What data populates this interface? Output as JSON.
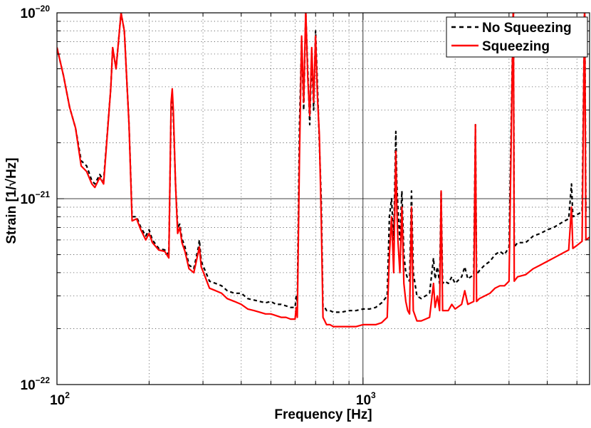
{
  "chart_data": {
    "type": "line",
    "xlabel": "Frequency [Hz]",
    "ylabel": "Strain [1/√Hz]",
    "xscale": "log",
    "yscale": "log",
    "xlim": [
      100,
      5500
    ],
    "ylim": [
      1e-22,
      1e-20
    ],
    "grid": true,
    "legend_position": "top-right",
    "x_ticks": [
      {
        "value": 100,
        "base": "10",
        "exp": "2"
      },
      {
        "value": 1000,
        "base": "10",
        "exp": "3"
      }
    ],
    "y_ticks": [
      {
        "value": 1e-22,
        "base": "10",
        "exp": "−22"
      },
      {
        "value": 1e-21,
        "base": "10",
        "exp": "−21"
      },
      {
        "value": 1e-20,
        "base": "10",
        "exp": "−20"
      }
    ],
    "series": [
      {
        "name": "No Squeezing",
        "color": "#000000",
        "style": "dashed",
        "points": [
          [
            100,
            6.5e-21
          ],
          [
            105,
            4.6e-21
          ],
          [
            110,
            3.1e-21
          ],
          [
            115,
            2.4e-21
          ],
          [
            120,
            1.6e-21
          ],
          [
            125,
            1.5e-21
          ],
          [
            130,
            1.25e-21
          ],
          [
            133,
            1.2e-21
          ],
          [
            138,
            1.35e-21
          ],
          [
            142,
            1.25e-21
          ],
          [
            150,
            4e-21
          ],
          [
            152,
            6.5e-21
          ],
          [
            156,
            5e-21
          ],
          [
            162,
            1e-20
          ],
          [
            166,
            8e-21
          ],
          [
            172,
            2.5e-21
          ],
          [
            176,
            8e-22
          ],
          [
            182,
            8e-22
          ],
          [
            188,
            7e-22
          ],
          [
            195,
            6.3e-22
          ],
          [
            200,
            6.8e-22
          ],
          [
            205,
            6e-22
          ],
          [
            215,
            5.4e-22
          ],
          [
            225,
            5.3e-22
          ],
          [
            232,
            5e-22
          ],
          [
            236,
            3e-21
          ],
          [
            238,
            3.6e-21
          ],
          [
            240,
            2.8e-21
          ],
          [
            244,
            1.2e-21
          ],
          [
            248,
            7e-22
          ],
          [
            252,
            7.3e-22
          ],
          [
            256,
            6.1e-22
          ],
          [
            262,
            5.5e-22
          ],
          [
            270,
            4.4e-22
          ],
          [
            280,
            4.2e-22
          ],
          [
            290,
            5.5e-22
          ],
          [
            292,
            6e-22
          ],
          [
            296,
            4.6e-22
          ],
          [
            305,
            4.1e-22
          ],
          [
            315,
            3.6e-22
          ],
          [
            330,
            3.5e-22
          ],
          [
            345,
            3.4e-22
          ],
          [
            360,
            3.2e-22
          ],
          [
            380,
            3.1e-22
          ],
          [
            400,
            3.1e-22
          ],
          [
            420,
            2.9e-22
          ],
          [
            440,
            2.85e-22
          ],
          [
            460,
            2.8e-22
          ],
          [
            480,
            2.75e-22
          ],
          [
            500,
            2.8e-22
          ],
          [
            520,
            2.7e-22
          ],
          [
            540,
            2.7e-22
          ],
          [
            560,
            2.65e-22
          ],
          [
            580,
            2.6e-22
          ],
          [
            600,
            2.6e-22
          ],
          [
            605,
            3e-22
          ],
          [
            610,
            2.8e-22
          ],
          [
            620,
            2.5e-21
          ],
          [
            630,
            7e-21
          ],
          [
            640,
            3e-21
          ],
          [
            650,
            1e-20
          ],
          [
            660,
            5e-21
          ],
          [
            670,
            2.5e-21
          ],
          [
            680,
            6e-21
          ],
          [
            690,
            3e-21
          ],
          [
            700,
            8e-21
          ],
          [
            710,
            4e-21
          ],
          [
            720,
            2e-21
          ],
          [
            730,
            1e-21
          ],
          [
            740,
            2.6e-22
          ],
          [
            750,
            2.6e-22
          ],
          [
            760,
            2.5e-22
          ],
          [
            780,
            2.5e-22
          ],
          [
            800,
            2.45e-22
          ],
          [
            850,
            2.45e-22
          ],
          [
            900,
            2.5e-22
          ],
          [
            950,
            2.5e-22
          ],
          [
            1000,
            2.55e-22
          ],
          [
            1050,
            2.55e-22
          ],
          [
            1100,
            2.6e-22
          ],
          [
            1150,
            2.75e-22
          ],
          [
            1200,
            3e-22
          ],
          [
            1220,
            8e-22
          ],
          [
            1240,
            1e-21
          ],
          [
            1260,
            6e-22
          ],
          [
            1280,
            2.3e-21
          ],
          [
            1290,
            1.2e-21
          ],
          [
            1300,
            9e-22
          ],
          [
            1320,
            6e-22
          ],
          [
            1340,
            1.1e-21
          ],
          [
            1360,
            5e-22
          ],
          [
            1380,
            4e-22
          ],
          [
            1400,
            3.7e-22
          ],
          [
            1420,
            3.6e-22
          ],
          [
            1440,
            1.1e-21
          ],
          [
            1460,
            4e-22
          ],
          [
            1500,
            3e-22
          ],
          [
            1550,
            2.9e-22
          ],
          [
            1600,
            3e-22
          ],
          [
            1650,
            3.1e-22
          ],
          [
            1700,
            4.8e-22
          ],
          [
            1720,
            3.7e-22
          ],
          [
            1750,
            4.3e-22
          ],
          [
            1780,
            3.5e-22
          ],
          [
            1800,
            1.1e-21
          ],
          [
            1820,
            3.5e-22
          ],
          [
            1850,
            3.6e-22
          ],
          [
            1900,
            3.5e-22
          ],
          [
            1950,
            3.8e-22
          ],
          [
            2000,
            3.5e-22
          ],
          [
            2100,
            3.8e-22
          ],
          [
            2150,
            4.3e-22
          ],
          [
            2200,
            3.7e-22
          ],
          [
            2300,
            3.9e-22
          ],
          [
            2330,
            2.5e-21
          ],
          [
            2350,
            3.9e-22
          ],
          [
            2400,
            4.1e-22
          ],
          [
            2500,
            4.4e-22
          ],
          [
            2600,
            4.6e-22
          ],
          [
            2700,
            5e-22
          ],
          [
            2800,
            5.2e-22
          ],
          [
            2900,
            5e-22
          ],
          [
            3000,
            5.5e-22
          ],
          [
            3100,
            1.2e-20
          ],
          [
            3120,
            5.5e-22
          ],
          [
            3200,
            5.8e-22
          ],
          [
            3400,
            5.8e-22
          ],
          [
            3600,
            6.3e-22
          ],
          [
            3800,
            6.5e-22
          ],
          [
            4000,
            6.8e-22
          ],
          [
            4200,
            7e-22
          ],
          [
            4500,
            7.5e-22
          ],
          [
            4700,
            7.8e-22
          ],
          [
            4800,
            1.2e-21
          ],
          [
            4850,
            8e-22
          ],
          [
            5000,
            8.2e-22
          ],
          [
            5200,
            8.5e-22
          ],
          [
            5300,
            1.2e-20
          ],
          [
            5350,
            8.6e-22
          ],
          [
            5500,
            8.8e-22
          ]
        ]
      },
      {
        "name": "Squeezing",
        "color": "#ff0000",
        "style": "solid",
        "points": [
          [
            100,
            6.5e-21
          ],
          [
            105,
            4.6e-21
          ],
          [
            110,
            3.1e-21
          ],
          [
            115,
            2.4e-21
          ],
          [
            120,
            1.5e-21
          ],
          [
            125,
            1.4e-21
          ],
          [
            130,
            1.2e-21
          ],
          [
            133,
            1.15e-21
          ],
          [
            138,
            1.3e-21
          ],
          [
            142,
            1.2e-21
          ],
          [
            150,
            4e-21
          ],
          [
            152,
            6.5e-21
          ],
          [
            156,
            5e-21
          ],
          [
            162,
            1e-20
          ],
          [
            166,
            8e-21
          ],
          [
            172,
            2.5e-21
          ],
          [
            176,
            7.6e-22
          ],
          [
            182,
            7.8e-22
          ],
          [
            188,
            6.8e-22
          ],
          [
            195,
            6e-22
          ],
          [
            200,
            6.5e-22
          ],
          [
            205,
            5.8e-22
          ],
          [
            215,
            5.3e-22
          ],
          [
            225,
            5.2e-22
          ],
          [
            232,
            4.8e-22
          ],
          [
            236,
            3.3e-21
          ],
          [
            238,
            3.9e-21
          ],
          [
            240,
            3e-21
          ],
          [
            244,
            1.2e-21
          ],
          [
            248,
            6.5e-22
          ],
          [
            252,
            7e-22
          ],
          [
            256,
            5.8e-22
          ],
          [
            262,
            5.2e-22
          ],
          [
            270,
            4.2e-22
          ],
          [
            280,
            4e-22
          ],
          [
            290,
            5.2e-22
          ],
          [
            292,
            5.5e-22
          ],
          [
            296,
            4.3e-22
          ],
          [
            305,
            3.8e-22
          ],
          [
            315,
            3.3e-22
          ],
          [
            330,
            3.2e-22
          ],
          [
            345,
            3.1e-22
          ],
          [
            360,
            2.9e-22
          ],
          [
            380,
            2.8e-22
          ],
          [
            400,
            2.7e-22
          ],
          [
            420,
            2.55e-22
          ],
          [
            440,
            2.5e-22
          ],
          [
            460,
            2.45e-22
          ],
          [
            480,
            2.4e-22
          ],
          [
            500,
            2.4e-22
          ],
          [
            520,
            2.35e-22
          ],
          [
            540,
            2.3e-22
          ],
          [
            560,
            2.3e-22
          ],
          [
            580,
            2.25e-22
          ],
          [
            600,
            2.25e-22
          ],
          [
            605,
            2.6e-22
          ],
          [
            610,
            2.3e-22
          ],
          [
            620,
            1.7e-21
          ],
          [
            630,
            7.5e-21
          ],
          [
            640,
            3.3e-21
          ],
          [
            650,
            1.05e-20
          ],
          [
            660,
            4.5e-21
          ],
          [
            670,
            2.8e-21
          ],
          [
            680,
            6.5e-21
          ],
          [
            690,
            3.3e-21
          ],
          [
            700,
            7.5e-21
          ],
          [
            710,
            3.5e-21
          ],
          [
            720,
            2.2e-21
          ],
          [
            730,
            8e-22
          ],
          [
            740,
            2.3e-22
          ],
          [
            750,
            2.2e-22
          ],
          [
            760,
            2.1e-22
          ],
          [
            780,
            2.1e-22
          ],
          [
            800,
            2.05e-22
          ],
          [
            850,
            2.05e-22
          ],
          [
            900,
            2.05e-22
          ],
          [
            950,
            2.05e-22
          ],
          [
            1000,
            2.1e-22
          ],
          [
            1050,
            2.1e-22
          ],
          [
            1100,
            2.1e-22
          ],
          [
            1150,
            2.15e-22
          ],
          [
            1200,
            2.3e-22
          ],
          [
            1220,
            5e-22
          ],
          [
            1240,
            8e-22
          ],
          [
            1260,
            4e-22
          ],
          [
            1280,
            1.8e-21
          ],
          [
            1290,
            9e-22
          ],
          [
            1300,
            6e-22
          ],
          [
            1320,
            4e-22
          ],
          [
            1340,
            9e-22
          ],
          [
            1360,
            3.5e-22
          ],
          [
            1380,
            2.8e-22
          ],
          [
            1400,
            2.5e-22
          ],
          [
            1420,
            2.4e-22
          ],
          [
            1440,
            9e-22
          ],
          [
            1460,
            2.5e-22
          ],
          [
            1500,
            2.2e-22
          ],
          [
            1550,
            2.2e-22
          ],
          [
            1600,
            2.25e-22
          ],
          [
            1650,
            2.3e-22
          ],
          [
            1700,
            3.5e-22
          ],
          [
            1720,
            2.6e-22
          ],
          [
            1750,
            3e-22
          ],
          [
            1780,
            2.5e-22
          ],
          [
            1800,
            1.1e-21
          ],
          [
            1820,
            2.5e-22
          ],
          [
            1850,
            2.5e-22
          ],
          [
            1900,
            2.5e-22
          ],
          [
            1950,
            2.7e-22
          ],
          [
            2000,
            2.55e-22
          ],
          [
            2100,
            2.7e-22
          ],
          [
            2150,
            3.2e-22
          ],
          [
            2200,
            2.7e-22
          ],
          [
            2300,
            2.8e-22
          ],
          [
            2330,
            2.5e-21
          ],
          [
            2350,
            2.8e-22
          ],
          [
            2400,
            2.9e-22
          ],
          [
            2500,
            3e-22
          ],
          [
            2600,
            3.1e-22
          ],
          [
            2700,
            3.3e-22
          ],
          [
            2800,
            3.4e-22
          ],
          [
            2900,
            3.4e-22
          ],
          [
            3000,
            3.6e-22
          ],
          [
            3100,
            1.2e-20
          ],
          [
            3120,
            3.6e-22
          ],
          [
            3200,
            3.8e-22
          ],
          [
            3400,
            3.9e-22
          ],
          [
            3600,
            4.2e-22
          ],
          [
            3800,
            4.4e-22
          ],
          [
            4000,
            4.6e-22
          ],
          [
            4200,
            4.8e-22
          ],
          [
            4500,
            5.1e-22
          ],
          [
            4700,
            5.3e-22
          ],
          [
            4800,
            9e-22
          ],
          [
            4850,
            5.4e-22
          ],
          [
            5000,
            5.6e-22
          ],
          [
            5200,
            5.9e-22
          ],
          [
            5300,
            1.2e-20
          ],
          [
            5350,
            6e-22
          ],
          [
            5500,
            6.2e-22
          ]
        ]
      }
    ]
  }
}
